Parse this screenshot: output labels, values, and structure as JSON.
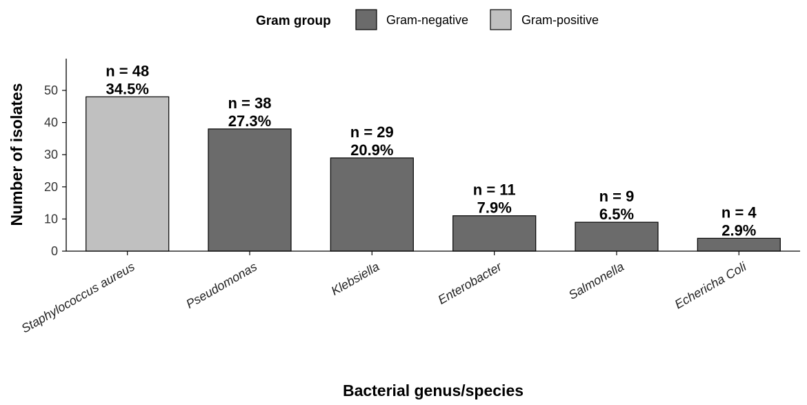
{
  "chart_data": {
    "type": "bar",
    "categories": [
      "Staphylococcus aureus",
      "Pseudomonas",
      "Klebsiella",
      "Enterobacter",
      "Salmonella",
      "Echericha Coli"
    ],
    "values": [
      48,
      38,
      29,
      11,
      9,
      4
    ],
    "gram_group": [
      "Gram-positive",
      "Gram-negative",
      "Gram-negative",
      "Gram-negative",
      "Gram-negative",
      "Gram-negative"
    ],
    "count_labels": [
      "n = 48",
      "n = 38",
      "n = 29",
      "n = 11",
      "n = 9",
      "n = 4"
    ],
    "percent_labels": [
      "34.5%",
      "27.3%",
      "20.9%",
      "7.9%",
      "6.5%",
      "2.9%"
    ],
    "title": "",
    "xlabel": "Bacterial genus/species",
    "ylabel": "Number of isolates",
    "ylim": [
      0,
      59
    ],
    "yticks": [
      0,
      10,
      20,
      30,
      40,
      50
    ],
    "grid": false,
    "legend": {
      "title": "Gram group",
      "placement": "top",
      "entries": [
        {
          "name": "Gram-negative",
          "color": "#6b6b6b"
        },
        {
          "name": "Gram-positive",
          "color": "#c0c0c0"
        }
      ]
    },
    "colors": {
      "Gram-negative": "#6b6b6b",
      "Gram-positive": "#c0c0c0",
      "bar_outline": "#000000",
      "axis": "#000000"
    }
  }
}
